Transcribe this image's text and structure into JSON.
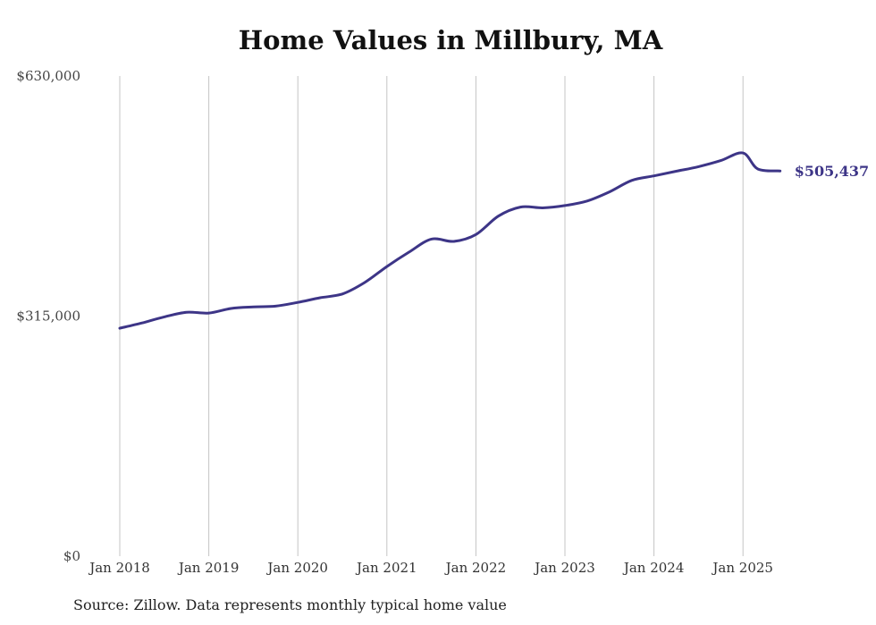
{
  "chart_data": {
    "type": "line",
    "title": "Home Values in Millbury, MA",
    "xlabel": "",
    "ylabel": "",
    "ylim": [
      0,
      630000
    ],
    "y_ticks": [
      {
        "value": 0,
        "label": "$0"
      },
      {
        "value": 315000,
        "label": "$315,000"
      },
      {
        "value": 630000,
        "label": "$630,000"
      }
    ],
    "x_ticks": [
      {
        "value": "2018-01",
        "label": "Jan 2018"
      },
      {
        "value": "2019-01",
        "label": "Jan 2019"
      },
      {
        "value": "2020-01",
        "label": "Jan 2020"
      },
      {
        "value": "2021-01",
        "label": "Jan 2021"
      },
      {
        "value": "2022-01",
        "label": "Jan 2022"
      },
      {
        "value": "2023-01",
        "label": "Jan 2023"
      },
      {
        "value": "2024-01",
        "label": "Jan 2024"
      },
      {
        "value": "2025-01",
        "label": "Jan 2025"
      }
    ],
    "grid": "vertical",
    "series": [
      {
        "color": "#3d3587",
        "points": [
          [
            "2018-01",
            299000
          ],
          [
            "2018-04",
            306000
          ],
          [
            "2018-07",
            314000
          ],
          [
            "2018-10",
            320000
          ],
          [
            "2019-01",
            319000
          ],
          [
            "2019-04",
            325000
          ],
          [
            "2019-07",
            327000
          ],
          [
            "2019-10",
            328000
          ],
          [
            "2020-01",
            333000
          ],
          [
            "2020-04",
            339000
          ],
          [
            "2020-07",
            344000
          ],
          [
            "2020-10",
            359000
          ],
          [
            "2021-01",
            380000
          ],
          [
            "2021-04",
            399000
          ],
          [
            "2021-07",
            416000
          ],
          [
            "2021-10",
            413000
          ],
          [
            "2022-01",
            422000
          ],
          [
            "2022-04",
            446000
          ],
          [
            "2022-07",
            458000
          ],
          [
            "2022-10",
            457000
          ],
          [
            "2023-01",
            460000
          ],
          [
            "2023-04",
            466000
          ],
          [
            "2023-07",
            478000
          ],
          [
            "2023-10",
            493000
          ],
          [
            "2024-01",
            499000
          ],
          [
            "2024-04",
            505000
          ],
          [
            "2024-07",
            511000
          ],
          [
            "2024-10",
            519000
          ],
          [
            "2025-01",
            529000
          ],
          [
            "2025-03",
            508000
          ],
          [
            "2025-06",
            505437
          ]
        ]
      }
    ],
    "end_label": "$505,437"
  },
  "source": "Source: Zillow. Data represents monthly typical home value"
}
